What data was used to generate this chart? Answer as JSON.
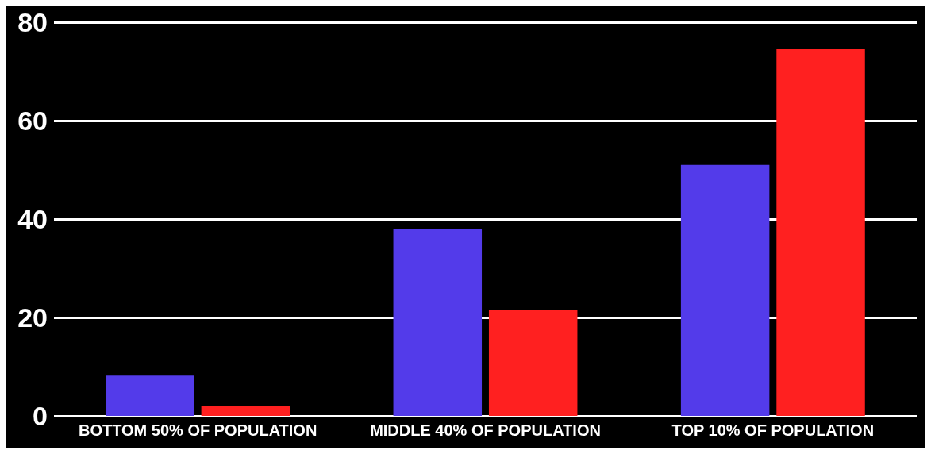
{
  "chart_data": {
    "type": "bar",
    "categories": [
      "BOTTOM 50% OF POPULATION",
      "MIDDLE 40% OF POPULATION",
      "TOP 10% OF POPULATION"
    ],
    "series": [
      {
        "color": "#533bea",
        "values": [
          8.2,
          38,
          51
        ]
      },
      {
        "color": "#ff2020",
        "values": [
          2,
          21.5,
          74.5
        ]
      }
    ],
    "ylim": [
      0,
      80
    ],
    "yticks": [
      0,
      20,
      40,
      60,
      80
    ],
    "grid": "y"
  }
}
